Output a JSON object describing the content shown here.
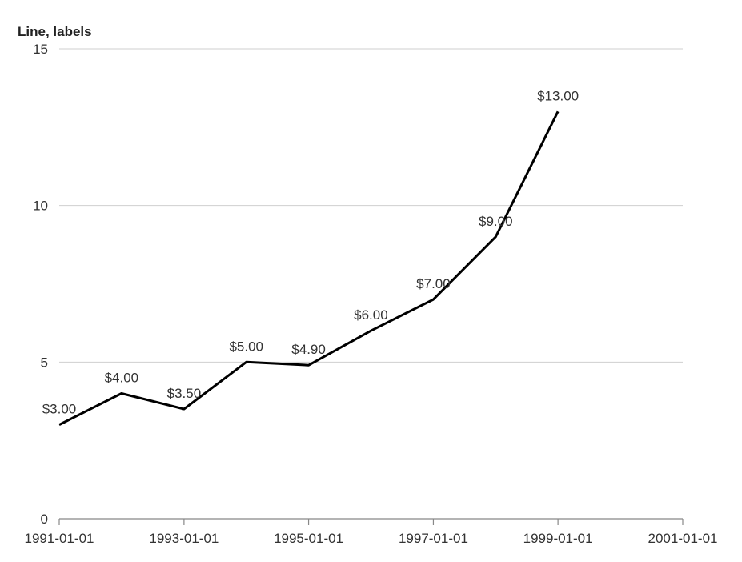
{
  "chart_data": {
    "type": "line",
    "title": "Line, labels",
    "xlabel": "",
    "ylabel": "",
    "x_range": [
      "1991-01-01",
      "2001-01-01"
    ],
    "ylim": [
      0,
      15
    ],
    "grid": true,
    "legend": "none",
    "x": [
      "1991-01-01",
      "1992-01-01",
      "1993-01-01",
      "1994-01-01",
      "1995-01-01",
      "1996-01-01",
      "1997-01-01",
      "1998-01-01",
      "1999-01-01"
    ],
    "series": [
      {
        "values": [
          3.0,
          4.0,
          3.5,
          5.0,
          4.9,
          6.0,
          7.0,
          9.0,
          13.0
        ],
        "labels": [
          "$3.00",
          "$4.00",
          "$3.50",
          "$5.00",
          "$4.90",
          "$6.00",
          "$7.00",
          "$9.00",
          "$13.00"
        ],
        "color": "#000000"
      }
    ],
    "x_ticks": [
      "1991-01-01",
      "1993-01-01",
      "1995-01-01",
      "1997-01-01",
      "1999-01-01",
      "2001-01-01"
    ],
    "y_ticks": [
      0,
      5,
      10,
      15
    ]
  }
}
